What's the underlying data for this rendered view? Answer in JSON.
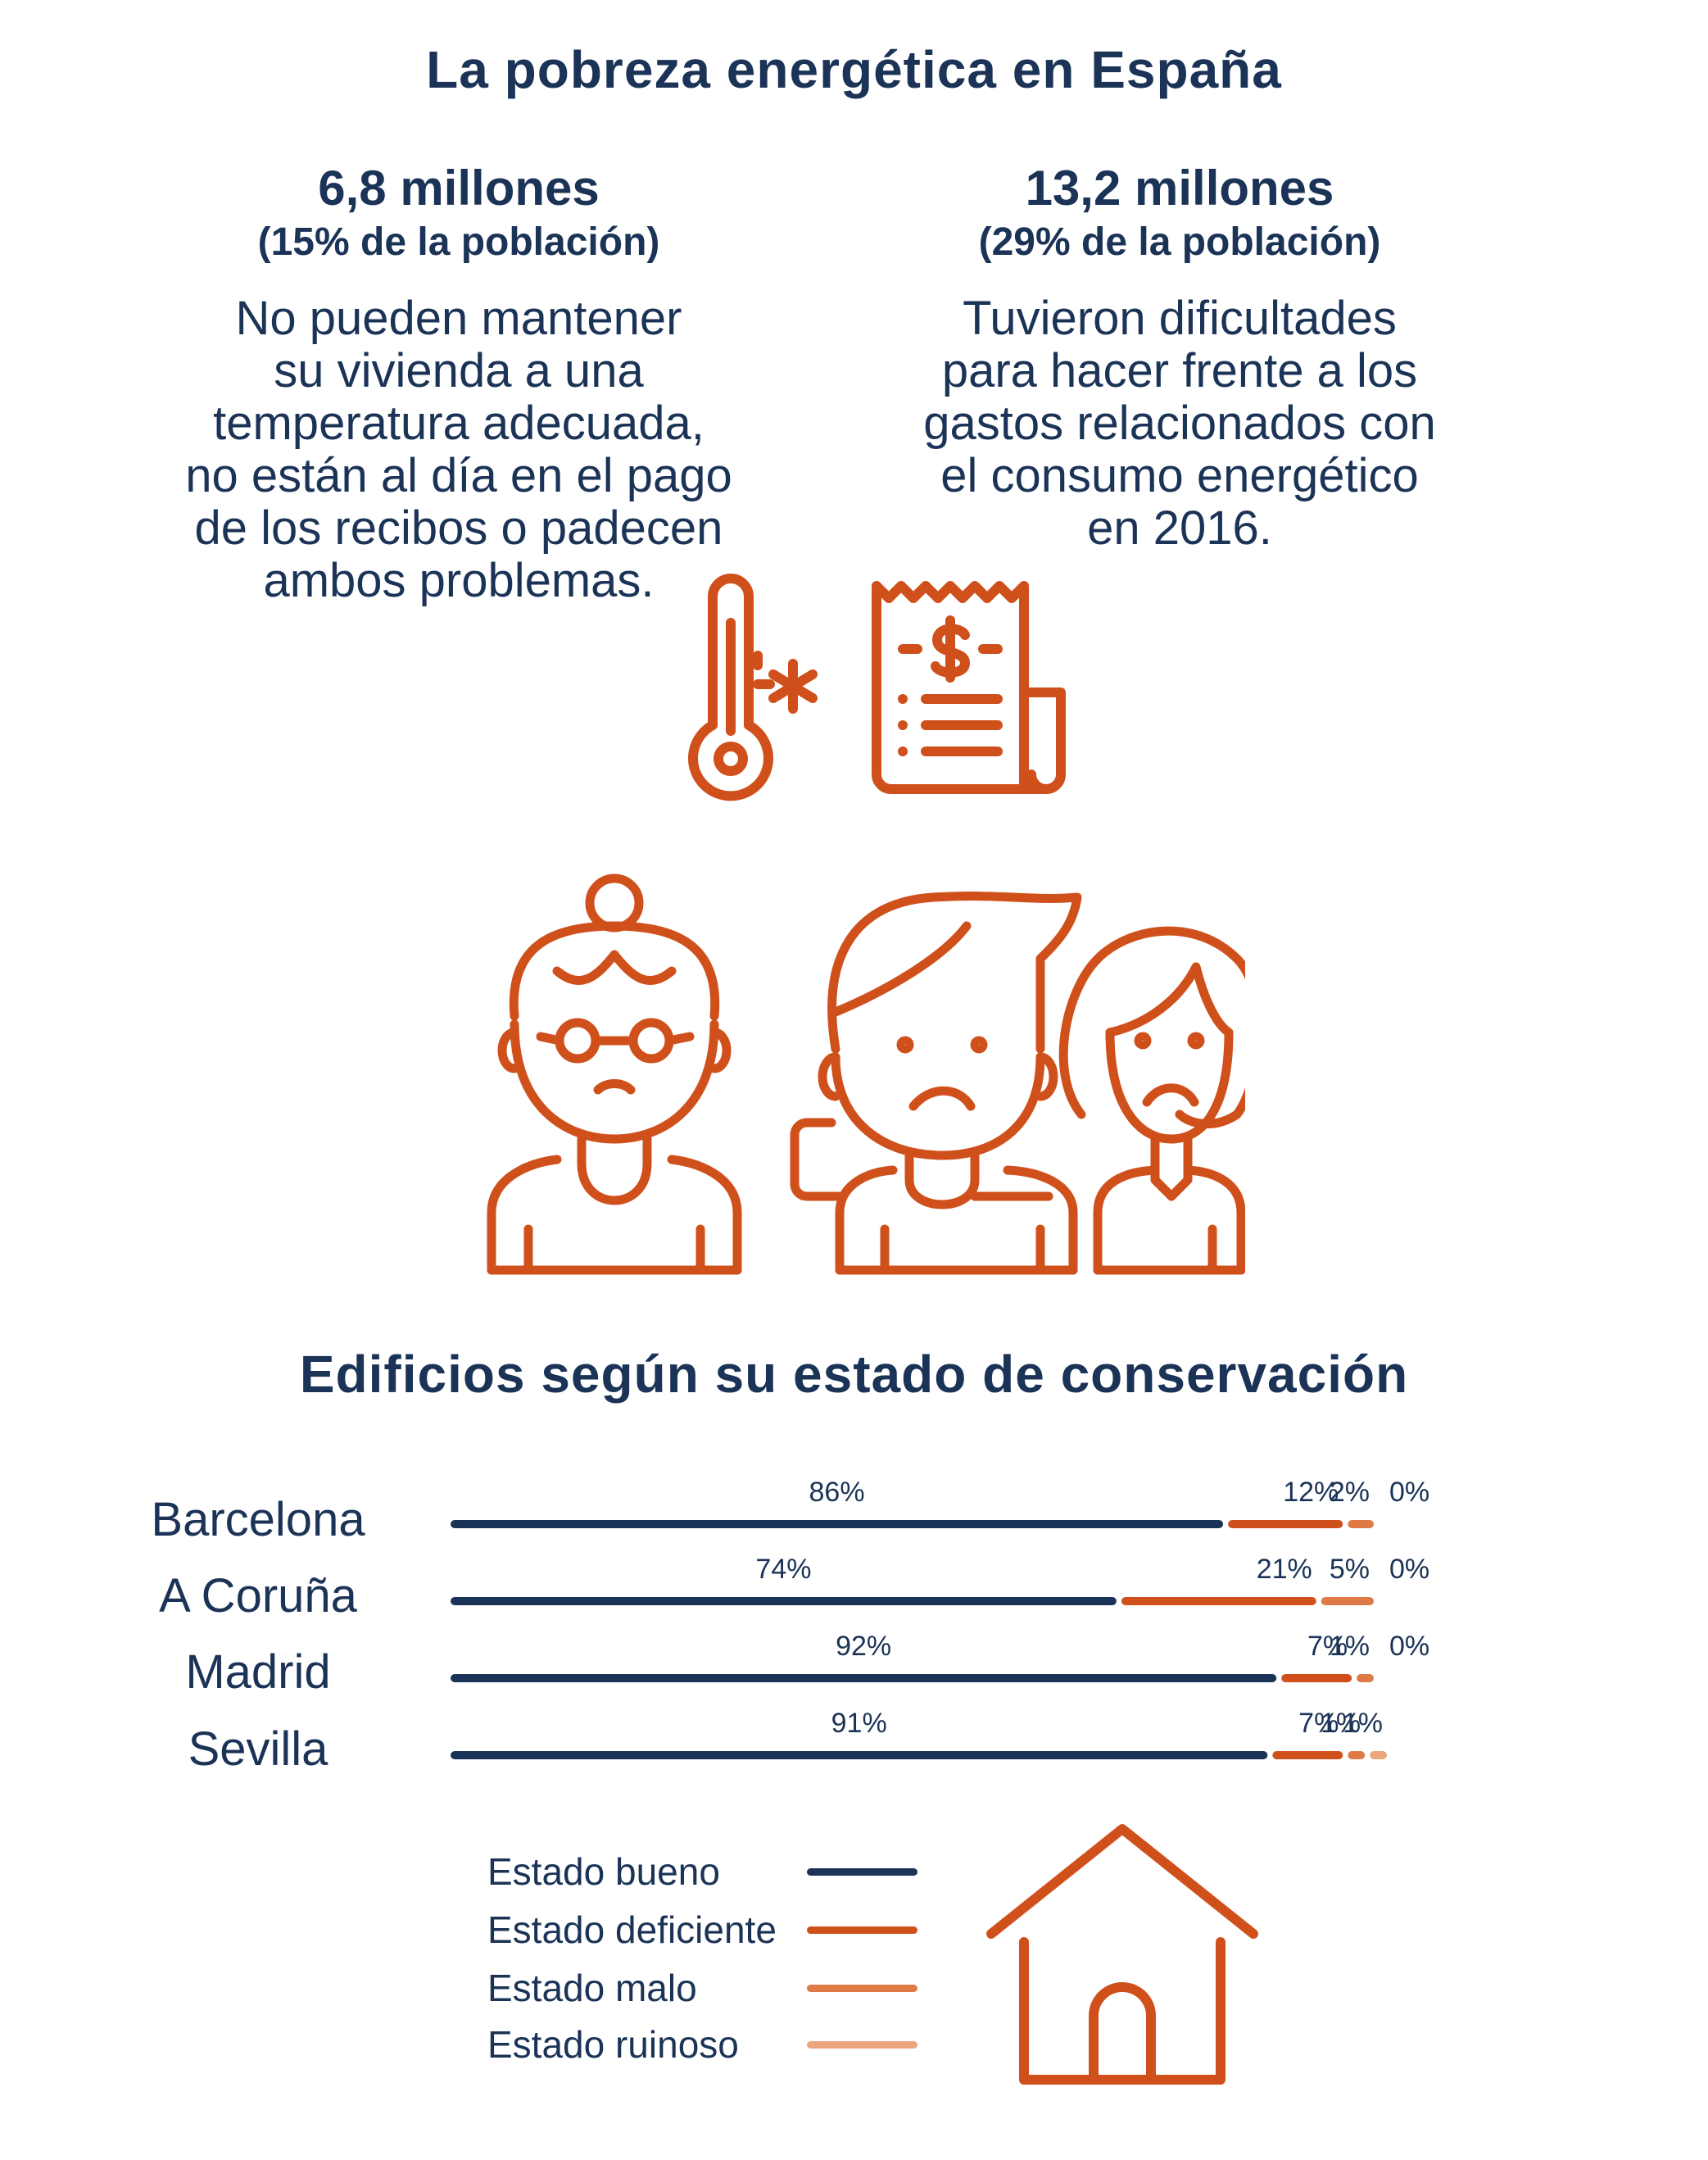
{
  "header": {
    "title": "La pobreza energética en España"
  },
  "stats": [
    {
      "figure": "6,8 millones",
      "percent": "(15% de la población)",
      "description": [
        "No pueden mantener",
        "su vivienda a una",
        "temperatura adecuada,",
        "no están al día en el pago",
        "de los recibos o padecen",
        "ambos problemas."
      ]
    },
    {
      "figure": "13,2 millones",
      "percent": "(29% de la población)",
      "description": [
        "Tuvieron dificultades",
        "para hacer frente a los",
        "gastos relacionados con",
        "el consumo energético",
        "en 2016."
      ]
    }
  ],
  "icons": [
    "thermometer-icon",
    "bill-icon",
    "people-icon",
    "house-icon"
  ],
  "colors": {
    "navy": "#1b3356",
    "bueno": "#1b3356",
    "deficiente": "#d0501c",
    "malo": "#df7a46",
    "ruinoso": "#eba67d"
  },
  "chart_data": {
    "type": "bar",
    "title": "Edificios según su estado de conservación",
    "categories": [
      "Barcelona",
      "A Coruña",
      "Madrid",
      "Sevilla"
    ],
    "series": [
      {
        "name": "Estado bueno",
        "values": [
          86,
          74,
          92,
          91
        ],
        "labels": [
          "86%",
          "74%",
          "92%",
          "91%"
        ]
      },
      {
        "name": "Estado deficiente",
        "values": [
          12,
          21,
          7,
          7
        ],
        "labels": [
          "12%",
          "21%",
          "7%",
          "7%"
        ]
      },
      {
        "name": "Estado malo",
        "values": [
          2,
          5,
          1,
          1
        ],
        "labels": [
          "2%",
          "5%",
          "1%",
          "1%"
        ]
      },
      {
        "name": "Estado ruinoso",
        "values": [
          0,
          0,
          0,
          1
        ],
        "labels": [
          "0%",
          "0%",
          "0%",
          "1%"
        ]
      }
    ],
    "unit": "%",
    "stacked": true,
    "orientation": "horizontal",
    "legend_position": "bottom"
  }
}
